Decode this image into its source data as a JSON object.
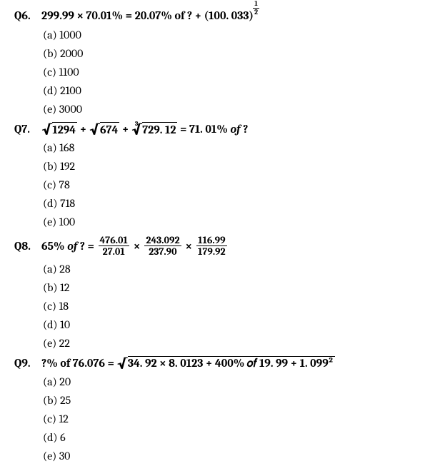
{
  "questions": [
    {
      "num": "Q6.",
      "stem": {
        "type": "q6",
        "parts": {
          "a": "299.99 × 70.01% = 20.07% of ? + (100. 033)",
          "exp_num": "1",
          "exp_den": "2"
        }
      },
      "options": [
        "(a) 1000",
        "(b) 2000",
        "(c) 1100",
        "(d) 2100",
        "(e) 3000"
      ]
    },
    {
      "num": "Q7.",
      "stem": {
        "type": "q7",
        "parts": {
          "r1": "1294",
          "plus1": " + ",
          "r2": "674",
          "plus2": " + ",
          "r3": "729. 12",
          "tail": " = 71. 01% ",
          "of": "of",
          "qm": " ?"
        }
      },
      "options": [
        "(a) 168",
        "(b) 192",
        "(c) 78",
        "(d) 718",
        "(e) 100"
      ]
    },
    {
      "num": "Q8.",
      "stem": {
        "type": "q8",
        "parts": {
          "lead": "65% ",
          "of": "of",
          "qe": " ? = ",
          "f1n": "476.01",
          "f1d": "27.01",
          "f2n": "243.092",
          "f2d": "237.90",
          "f3n": "116.99",
          "f3d": "179.92"
        }
      },
      "options": [
        "(a) 28",
        "(b) 12",
        "(c) 18",
        "(d) 10",
        "(e) 22"
      ]
    },
    {
      "num": "Q9.",
      "stem": {
        "type": "q9",
        "parts": {
          "lead": "?% of 76.076 = ",
          "inside": "34. 92 × 8. 0123 + 400% 𝑜𝑓 19. 99 + 1. 099²"
        }
      },
      "options": [
        "(a) 20",
        "(b) 25",
        "(c) 12",
        "(d) 6",
        "(e) 30"
      ]
    }
  ]
}
